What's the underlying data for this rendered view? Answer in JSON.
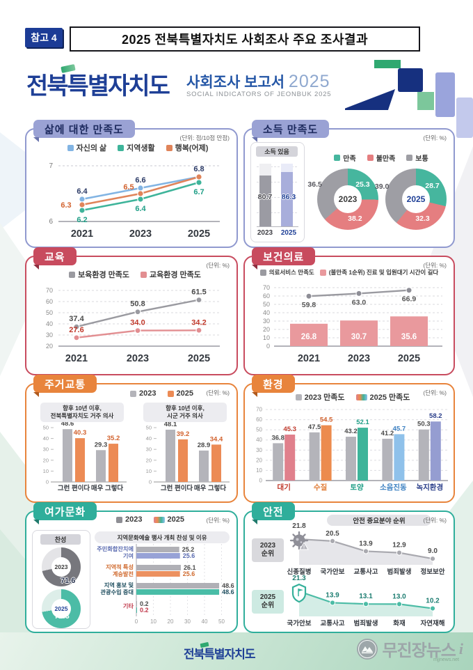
{
  "page": {
    "ref_label": "참고 4",
    "title": "2025 전북특별자치도 사회조사 주요 조사결과",
    "logo": {
      "region": "전북특별자치도",
      "report": "사회조사 보고서",
      "year": "2025",
      "subtitle_en": "SOCIAL INDICATORS OF JEONBUK 2025"
    },
    "footer": {
      "logo": "전북특별자치도",
      "watermark": "무진장뉴스",
      "watermark_suffix": "i",
      "watermark_sub": "mjjnews.net"
    }
  },
  "chart_data": [
    {
      "id": "life_satisfaction",
      "type": "line",
      "title": "삶에 대한 만족도",
      "unit": "(단위: 점/10점 만점)",
      "x": [
        "2021",
        "2023",
        "2025"
      ],
      "series": [
        {
          "name": "자신의 삶",
          "values": [
            6.4,
            6.6,
            6.8
          ],
          "color": "#82b4e3",
          "label_color": "#2b3a66"
        },
        {
          "name": "지역생활",
          "values": [
            6.2,
            6.4,
            6.7
          ],
          "color": "#3eb49a",
          "label_color": "#1f9e86"
        },
        {
          "name": "행복(어제)",
          "values": [
            6.3,
            6.5,
            6.8
          ],
          "color": "#e0845a",
          "label_color": "#d2622e"
        }
      ],
      "ylim": [
        6,
        7
      ],
      "yticks": [
        6,
        7
      ],
      "legend_position": "top",
      "grid": "dashed-top-only"
    },
    {
      "id": "income_satisfaction",
      "type": "donut+bar",
      "title": "소득 만족도",
      "unit": "(단위: %)",
      "bar": {
        "label": "소득 있음",
        "categories": [
          "2023",
          "2025"
        ],
        "values": [
          80.7,
          86.3
        ],
        "colors": [
          "#9b9ba3",
          "#a8aedb"
        ],
        "ymax": 100
      },
      "legend": [
        {
          "name": "만족",
          "color": "#46b69e"
        },
        {
          "name": "불만족",
          "color": "#e57e80"
        },
        {
          "name": "보통",
          "color": "#9e9ea4"
        }
      ],
      "donuts": [
        {
          "label": "2023",
          "slices": [
            {
              "name": "만족",
              "value": 25.3
            },
            {
              "name": "불만족",
              "value": 38.2
            },
            {
              "name": "보통",
              "value": 36.5
            }
          ]
        },
        {
          "label": "2025",
          "slices": [
            {
              "name": "만족",
              "value": 28.7
            },
            {
              "name": "불만족",
              "value": 32.3
            },
            {
              "name": "보통",
              "value": 39.0
            }
          ]
        }
      ]
    },
    {
      "id": "education",
      "type": "line",
      "title": "교육",
      "unit": "(단위: %)",
      "x": [
        "2021",
        "2023",
        "2025"
      ],
      "series": [
        {
          "name": "보육환경 만족도",
          "values": [
            37.4,
            50.8,
            61.5
          ],
          "color": "#9a9aa0",
          "label_color": "#4a4a4a"
        },
        {
          "name": "교육환경 만족도",
          "values": [
            27.6,
            34.0,
            34.2
          ],
          "color": "#e28e91",
          "label_color": "#c0392b"
        }
      ],
      "ylim": [
        20,
        70
      ],
      "yticks": [
        20,
        30,
        40,
        50,
        60,
        70
      ],
      "grid": "dashed"
    },
    {
      "id": "healthcare",
      "type": "line+bar",
      "title": "보건의료",
      "unit": "(단위: %)",
      "x": [
        "2021",
        "2023",
        "2025"
      ],
      "line": {
        "name": "의료서비스 만족도",
        "values": [
          59.8,
          63.0,
          66.9
        ],
        "color": "#9a9aa0"
      },
      "bars": {
        "name": "(불만족 1순위) 진료 및 입원대기 시간이 길다",
        "values": [
          26.8,
          30.7,
          35.6
        ],
        "color": "#e9999d"
      },
      "ylim": [
        0,
        70
      ],
      "yticks": [
        0,
        10,
        20,
        30,
        40,
        50,
        60,
        70
      ]
    },
    {
      "id": "housing_transport",
      "type": "grouped-bar",
      "title": "주거교통",
      "unit": "(단위: %)",
      "legend": [
        {
          "name": "2023",
          "color": "#b4b4ba"
        },
        {
          "name": "2025",
          "color": "#ec8b55"
        }
      ],
      "groups": [
        {
          "subtitle": "향후 10년 이후,\n전북특별자치도 거주 의사",
          "categories": [
            "그런 편이다",
            "매우 그렇다"
          ],
          "values_2023": [
            48.6,
            29.3
          ],
          "values_2025": [
            40.3,
            35.2
          ]
        },
        {
          "subtitle": "향후 10년 이후,\n시군 거주 의사",
          "categories": [
            "그런 편이다",
            "매우 그렇다"
          ],
          "values_2023": [
            48.1,
            28.9
          ],
          "values_2025": [
            39.2,
            34.4
          ]
        }
      ],
      "ylim": [
        0,
        50
      ],
      "yticks": [
        0,
        10,
        20,
        30,
        40,
        50
      ]
    },
    {
      "id": "environment",
      "type": "grouped-bar",
      "title": "환경",
      "unit": "(단위: %)",
      "legend": [
        {
          "name": "2023 만족도",
          "color": "#b4b4ba"
        },
        {
          "name": "2025 만족도",
          "color": "multi"
        }
      ],
      "categories": [
        "대기",
        "수질",
        "토양",
        "소음진동",
        "녹지환경"
      ],
      "series": [
        {
          "name": "2023 만족도",
          "values": [
            36.8,
            47.5,
            43.2,
            41.2,
            50.3
          ],
          "color": "#b4b4ba"
        },
        {
          "name": "2025 만족도",
          "values": [
            45.3,
            54.5,
            52.1,
            45.7,
            58.2
          ],
          "colors": [
            "#e0808c",
            "#ec8b4e",
            "#3eb49a",
            "#8fc1ea",
            "#959dd1"
          ]
        }
      ],
      "value_colors_2025": [
        "#c0392b",
        "#d2622e",
        "#1f9e86",
        "#3a7fc1",
        "#2b3f8a"
      ],
      "category_colors": [
        "#c0392b",
        "#e07b34",
        "#1f9e86",
        "#3a7fc1",
        "#2b3f8a"
      ],
      "ylim": [
        0,
        70
      ],
      "yticks": [
        0,
        10,
        20,
        30,
        40,
        50,
        60,
        70
      ]
    },
    {
      "id": "leisure_culture",
      "type": "donut+hbar",
      "title": "여가문화",
      "unit": "(단위: %)",
      "legend": [
        {
          "name": "2023",
          "color": "#8e8e94"
        },
        {
          "name": "2025",
          "color": "multi"
        }
      ],
      "approval_label": "찬성",
      "donuts": [
        {
          "label": "2023",
          "value": 71.6,
          "color": "#77777d",
          "track": "#e4e4e7"
        },
        {
          "label": "2025",
          "value": 72.3,
          "color": "#4cbca6",
          "track": "#ddeee9"
        }
      ],
      "hbar": {
        "title": "지역문화예술 행사 개최 찬성 및 이유",
        "color_2023": "#b0b0b6",
        "rows": [
          {
            "label": "주민화합잔치에\n기여",
            "values": [
              25.2,
              25.6
            ],
            "color_2025": "#97a2d6",
            "label_color": "#5a6bb0"
          },
          {
            "label": "지역적 특성\n계승발전",
            "values": [
              26.1,
              25.6
            ],
            "color_2025": "#ec9160",
            "label_color": "#d06a2e"
          },
          {
            "label": "지역 홍보 및\n관광수입 증대",
            "values": [
              48.6,
              48.6
            ],
            "color_2025": "#49bda7",
            "label_color": "#1f4e5f"
          },
          {
            "label": "기타",
            "values": [
              0.2,
              0.2
            ],
            "color_2025": "#49bda7",
            "label_color": "#c0394b"
          }
        ],
        "xticks": [
          0,
          10,
          20,
          30,
          40,
          50
        ]
      }
    },
    {
      "id": "safety",
      "type": "ranked-line",
      "title": "안전",
      "unit": "(단위: %)",
      "subtitle": "안전 중요분야 순위",
      "rows": [
        {
          "label": "2023\n순위",
          "icon": "virus-icon",
          "color": "#a9a9af",
          "fill": "#e6e6ea",
          "box_bg": "#d9d9dd",
          "value_color": "#4a4a4a",
          "categories": [
            "신종질병",
            "국가안보",
            "교통사고",
            "범죄발생",
            "정보보안"
          ],
          "values": [
            21.8,
            20.5,
            13.9,
            12.9,
            9.0
          ]
        },
        {
          "label": "2025\n순위",
          "icon": "shield-icon",
          "color": "#4cbca6",
          "fill": "#d4ede6",
          "box_bg": "#cdeae2",
          "value_color": "#1d7d71",
          "categories": [
            "국가안보",
            "교통사고",
            "범죄발생",
            "화재",
            "자연재해"
          ],
          "values": [
            21.3,
            13.9,
            13.1,
            13.0,
            10.2
          ]
        }
      ]
    }
  ]
}
